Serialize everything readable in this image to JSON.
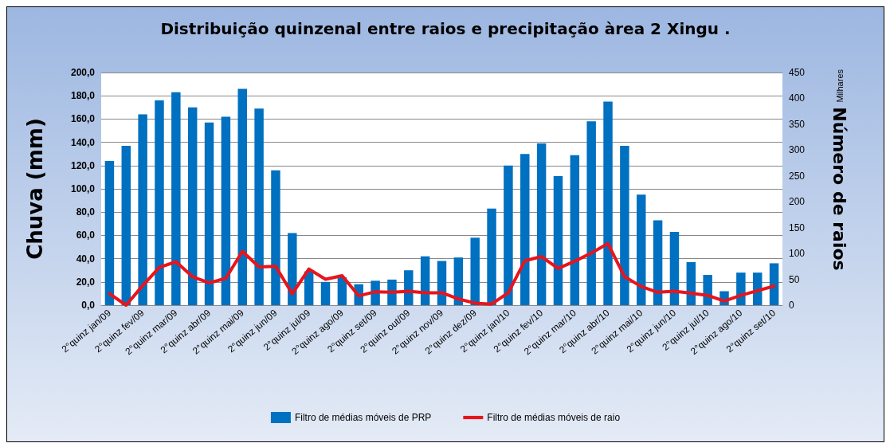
{
  "chart_data": {
    "type": "bar",
    "title": "Distribuição quinzenal entre raios e precipitação àrea 2 Xingu .",
    "categories": [
      "2°quinz jan/09",
      null,
      "2°quinz fev/09",
      null,
      "2°quinz mar/09",
      null,
      "2°quinz abr/09",
      null,
      "2°quinz mai/09",
      null,
      "2°quinz jun/09",
      null,
      "2°quinz jul/09",
      null,
      "2°quinz ago/09",
      null,
      "2°quinz set/09",
      null,
      "2°quinz out/09",
      null,
      "2°quinz nov/09",
      null,
      "2°quinz dez/09",
      null,
      "2°quinz jan/10",
      null,
      "2°quinz fev/10",
      null,
      "2°quinz mar/10",
      null,
      "2°quinz abr/10",
      null,
      "2°quinz mai/10",
      null,
      "2°quinz jun/10",
      null,
      "2°quinz jul/10",
      null,
      "2°quinz ago/10",
      null,
      "2°quinz set/10"
    ],
    "series": [
      {
        "name": "Filtro de médias móveis de PRP",
        "color": "#0070c0",
        "values": [
          124,
          137,
          164,
          176,
          183,
          170,
          157,
          162,
          186,
          169,
          116,
          62,
          29,
          20,
          24,
          18,
          21,
          22,
          30,
          42,
          38,
          41,
          58,
          83,
          120,
          130,
          139,
          111,
          129,
          158,
          175,
          137,
          95,
          73,
          63,
          37,
          26,
          12,
          28,
          28,
          36
        ]
      },
      {
        "name": "Filtro de médias móveis de raio",
        "type": "line",
        "axis": "y2",
        "color": "#e8141c",
        "values": [
          22,
          0,
          38,
          73,
          84,
          55,
          43,
          52,
          104,
          74,
          75,
          22,
          70,
          50,
          57,
          18,
          26,
          25,
          27,
          24,
          24,
          12,
          4,
          2,
          24,
          86,
          94,
          71,
          85,
          101,
          119,
          55,
          36,
          25,
          27,
          23,
          19,
          8,
          19,
          28,
          37
        ]
      }
    ],
    "ylabel": "Chuva (mm)",
    "y2label": "Número de raios",
    "ylim": [
      0,
      200
    ],
    "yticks": [
      {
        "value": 0,
        "label": "0,0"
      },
      {
        "value": 20,
        "label": "20,0"
      },
      {
        "value": 40,
        "label": "40,0"
      },
      {
        "value": 60,
        "label": "60,0"
      },
      {
        "value": 80,
        "label": "80,0"
      },
      {
        "value": 100,
        "label": "100,0"
      },
      {
        "value": 120,
        "label": "120,0"
      },
      {
        "value": 140,
        "label": "140,0"
      },
      {
        "value": 160,
        "label": "160,0"
      },
      {
        "value": 180,
        "label": "180,0"
      },
      {
        "value": 200,
        "label": "200,0"
      }
    ],
    "y2lim": [
      0,
      450
    ],
    "y2ticks": [
      0,
      50,
      100,
      150,
      200,
      250,
      300,
      350,
      400,
      450
    ],
    "annotations": [
      "Milhares"
    ],
    "grid": "y",
    "legend": "bottom",
    "marker": "none",
    "line_style": "solid"
  }
}
